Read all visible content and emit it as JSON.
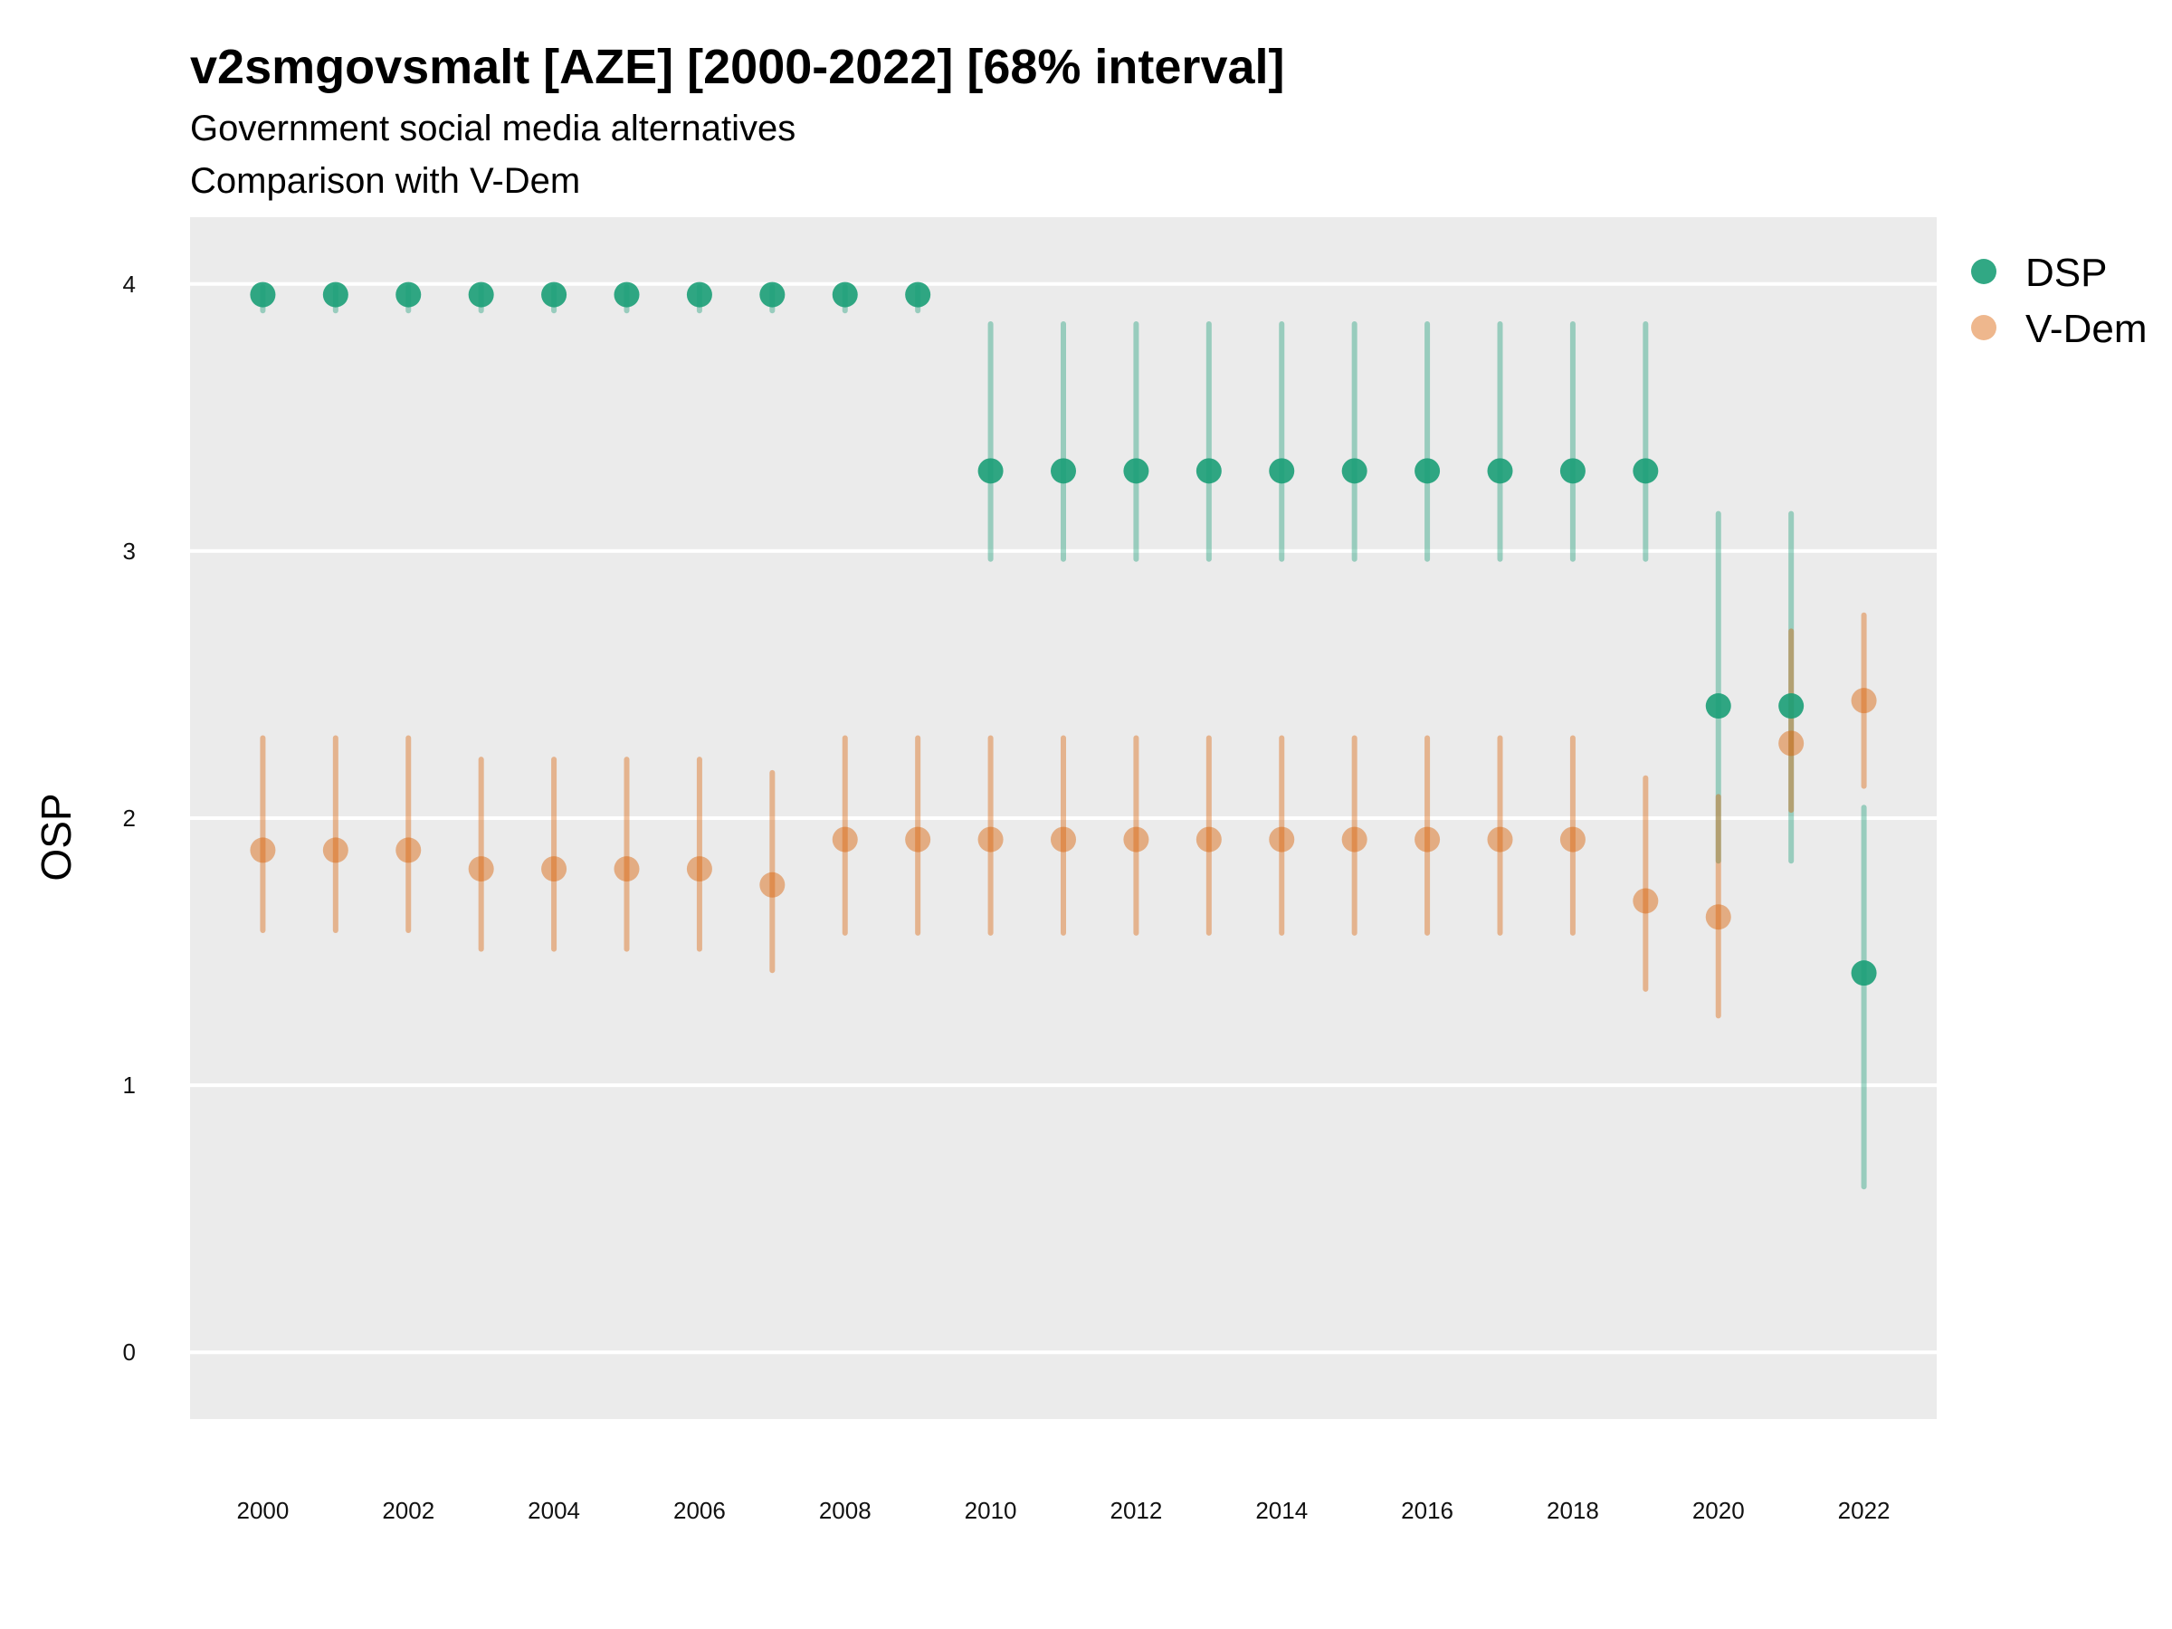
{
  "chart_data": {
    "type": "scatter",
    "title": "v2smgovsmalt [AZE] [2000-2022] [68% interval]",
    "subtitle": "Government social media alternatives",
    "subtitle2": "Comparison with V-Dem",
    "ylabel": "OSP",
    "xlabel": "",
    "ylim": [
      -0.25,
      4.25
    ],
    "xlim": [
      1999.0,
      2023.0
    ],
    "y_ticks": [
      0,
      1,
      2,
      3,
      4
    ],
    "x_ticks": [
      2000,
      2002,
      2004,
      2006,
      2008,
      2010,
      2012,
      2014,
      2016,
      2018,
      2020,
      2022
    ],
    "grid": "horizontal",
    "legend_position": "right",
    "series": [
      {
        "name": "DSP",
        "color": "#1b9e77",
        "x": [
          2000,
          2001,
          2002,
          2003,
          2004,
          2005,
          2006,
          2007,
          2008,
          2009,
          2010,
          2011,
          2012,
          2013,
          2014,
          2015,
          2016,
          2017,
          2018,
          2019,
          2020,
          2021,
          2022
        ],
        "y": [
          3.96,
          3.96,
          3.96,
          3.96,
          3.96,
          3.96,
          3.96,
          3.96,
          3.96,
          3.96,
          3.3,
          3.3,
          3.3,
          3.3,
          3.3,
          3.3,
          3.3,
          3.3,
          3.3,
          3.3,
          2.42,
          2.42,
          1.42
        ],
        "lower": [
          3.9,
          3.9,
          3.9,
          3.9,
          3.9,
          3.9,
          3.9,
          3.9,
          3.9,
          3.9,
          2.97,
          2.97,
          2.97,
          2.97,
          2.97,
          2.97,
          2.97,
          2.97,
          2.97,
          2.97,
          1.84,
          1.84,
          0.62
        ],
        "upper": [
          3.99,
          3.99,
          3.99,
          3.99,
          3.99,
          3.99,
          3.99,
          3.99,
          3.99,
          3.99,
          3.85,
          3.85,
          3.85,
          3.85,
          3.85,
          3.85,
          3.85,
          3.85,
          3.85,
          3.85,
          3.14,
          3.14,
          2.04
        ]
      },
      {
        "name": "V-Dem",
        "color": "#d95f02",
        "x": [
          2000,
          2001,
          2002,
          2003,
          2004,
          2005,
          2006,
          2007,
          2008,
          2009,
          2010,
          2011,
          2012,
          2013,
          2014,
          2015,
          2016,
          2017,
          2018,
          2019,
          2020,
          2021,
          2022
        ],
        "y": [
          1.88,
          1.88,
          1.88,
          1.81,
          1.81,
          1.81,
          1.81,
          1.75,
          1.92,
          1.92,
          1.92,
          1.92,
          1.92,
          1.92,
          1.92,
          1.92,
          1.92,
          1.92,
          1.92,
          1.69,
          1.63,
          2.28,
          2.44
        ],
        "lower": [
          1.58,
          1.58,
          1.58,
          1.51,
          1.51,
          1.51,
          1.51,
          1.43,
          1.57,
          1.57,
          1.57,
          1.57,
          1.57,
          1.57,
          1.57,
          1.57,
          1.57,
          1.57,
          1.57,
          1.36,
          1.26,
          2.03,
          2.12
        ],
        "upper": [
          2.3,
          2.3,
          2.3,
          2.22,
          2.22,
          2.22,
          2.22,
          2.17,
          2.3,
          2.3,
          2.3,
          2.3,
          2.3,
          2.3,
          2.3,
          2.3,
          2.3,
          2.3,
          2.3,
          2.15,
          2.08,
          2.7,
          2.76
        ]
      }
    ]
  }
}
